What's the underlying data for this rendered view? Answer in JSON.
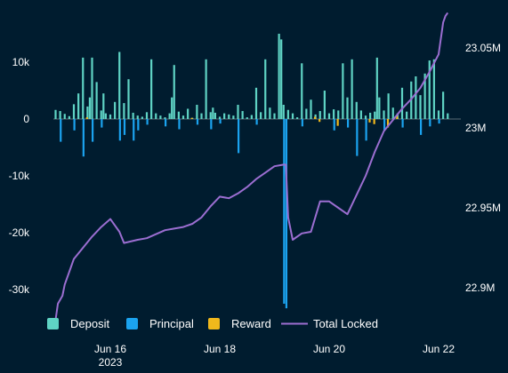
{
  "chart_data": {
    "type": "bar+line",
    "title": "",
    "left_axis": {
      "ticks": [
        10000,
        0,
        -10000,
        -20000,
        -30000
      ],
      "tick_labels": [
        "10k",
        "0",
        "-10k",
        "-20k",
        "-30k"
      ],
      "range": [
        -36000,
        16500
      ]
    },
    "right_axis": {
      "ticks": [
        23050000,
        23000000,
        22950000,
        22900000
      ],
      "tick_labels": [
        "23.05M",
        "23M",
        "22.95M",
        "22.9M"
      ],
      "range": [
        22870000,
        23075000
      ]
    },
    "x_axis": {
      "range_days": [
        "2023-06-14T20:00",
        "2023-06-22T10:00"
      ],
      "ticks": [
        {
          "date": "2023-06-16",
          "label": "Jun 16",
          "sublabel": "2023"
        },
        {
          "date": "2023-06-18",
          "label": "Jun 18",
          "sublabel": ""
        },
        {
          "date": "2023-06-20",
          "label": "Jun 20",
          "sublabel": ""
        },
        {
          "date": "2023-06-22",
          "label": "Jun 22",
          "sublabel": ""
        }
      ]
    },
    "colors": {
      "background": "#001c2f",
      "deposit": "#5fd3c4",
      "principal": "#1ba3ef",
      "reward": "#f0b81c",
      "total_locked": "#9b6ed1",
      "zero_line": "#5a6b76",
      "text": "#ffffff"
    },
    "legend": {
      "position": "bottom",
      "items": [
        {
          "name": "Deposit",
          "type": "bar",
          "color": "#5fd3c4"
        },
        {
          "name": "Principal",
          "type": "bar",
          "color": "#1ba3ef"
        },
        {
          "name": "Reward",
          "type": "bar",
          "color": "#f0b81c"
        },
        {
          "name": "Total Locked",
          "type": "line",
          "color": "#9b6ed1"
        }
      ]
    },
    "series": [
      {
        "name": "Deposit",
        "type": "bar",
        "axis": "left",
        "x": [
          "2023-06-15T00:00",
          "2023-06-15T02:00",
          "2023-06-15T04:00",
          "2023-06-15T06:00",
          "2023-06-15T08:00",
          "2023-06-15T10:00",
          "2023-06-15T12:00",
          "2023-06-15T14:00",
          "2023-06-15T15:00",
          "2023-06-15T16:00",
          "2023-06-15T18:00",
          "2023-06-15T20:00",
          "2023-06-15T21:00",
          "2023-06-15T22:00",
          "2023-06-16T00:00",
          "2023-06-16T02:00",
          "2023-06-16T04:00",
          "2023-06-16T06:00",
          "2023-06-16T08:00",
          "2023-06-16T10:00",
          "2023-06-16T12:00",
          "2023-06-16T14:00",
          "2023-06-16T16:00",
          "2023-06-16T18:00",
          "2023-06-16T20:00",
          "2023-06-16T22:00",
          "2023-06-17T00:00",
          "2023-06-17T02:00",
          "2023-06-17T03:00",
          "2023-06-17T04:00",
          "2023-06-17T06:00",
          "2023-06-17T08:00",
          "2023-06-17T10:00",
          "2023-06-17T12:00",
          "2023-06-17T14:00",
          "2023-06-17T16:00",
          "2023-06-17T18:00",
          "2023-06-17T20:00",
          "2023-06-17T21:00",
          "2023-06-17T22:00",
          "2023-06-18T00:00",
          "2023-06-18T02:00",
          "2023-06-18T04:00",
          "2023-06-18T06:00",
          "2023-06-18T08:00",
          "2023-06-18T10:00",
          "2023-06-18T12:00",
          "2023-06-18T14:00",
          "2023-06-18T16:00",
          "2023-06-18T18:00",
          "2023-06-18T20:00",
          "2023-06-18T22:00",
          "2023-06-19T00:00",
          "2023-06-19T02:00",
          "2023-06-19T03:00",
          "2023-06-19T04:00",
          "2023-06-19T06:00",
          "2023-06-19T08:00",
          "2023-06-19T10:00",
          "2023-06-19T12:00",
          "2023-06-19T14:00",
          "2023-06-19T16:00",
          "2023-06-19T18:00",
          "2023-06-19T20:00",
          "2023-06-19T22:00",
          "2023-06-20T00:00",
          "2023-06-20T02:00",
          "2023-06-20T04:00",
          "2023-06-20T06:00",
          "2023-06-20T08:00",
          "2023-06-20T10:00",
          "2023-06-20T12:00",
          "2023-06-20T14:00",
          "2023-06-20T16:00",
          "2023-06-20T18:00",
          "2023-06-20T20:00",
          "2023-06-20T21:00",
          "2023-06-20T22:00",
          "2023-06-21T00:00",
          "2023-06-21T02:00",
          "2023-06-21T04:00",
          "2023-06-21T06:00",
          "2023-06-21T08:00",
          "2023-06-21T10:00",
          "2023-06-21T12:00",
          "2023-06-21T14:00",
          "2023-06-21T16:00",
          "2023-06-21T18:00",
          "2023-06-21T20:00",
          "2023-06-21T22:00",
          "2023-06-22T00:00",
          "2023-06-22T02:00",
          "2023-06-22T04:00"
        ],
        "values": [
          1600,
          1400,
          900,
          500,
          2600,
          4500,
          10800,
          2200,
          3800,
          10800,
          6500,
          1500,
          4500,
          1000,
          800,
          3000,
          11800,
          2800,
          7000,
          1100,
          600,
          400,
          1200,
          10500,
          1000,
          600,
          300,
          1000,
          3800,
          9500,
          1300,
          600,
          1800,
          200,
          2500,
          1000,
          10500,
          1200,
          2000,
          1100,
          400,
          1000,
          800,
          600,
          2500,
          1400,
          300,
          700,
          5500,
          1200,
          10500,
          2000,
          1000,
          15000,
          14000,
          2500,
          1600,
          1000,
          300,
          9800,
          1800,
          3400,
          800,
          1400,
          5000,
          1000,
          1700,
          1500,
          9800,
          3800,
          10500,
          3000,
          1500,
          600,
          1100,
          1300,
          10800,
          3800,
          1500,
          4500,
          2000,
          1000,
          5500,
          1300,
          6600,
          7500,
          4200,
          8000,
          10300,
          10500,
          1500,
          4800,
          1000
        ]
      },
      {
        "name": "Principal",
        "type": "bar",
        "axis": "left",
        "x": [
          "2023-06-15T02:00",
          "2023-06-15T08:00",
          "2023-06-15T12:00",
          "2023-06-15T16:00",
          "2023-06-15T20:00",
          "2023-06-16T04:00",
          "2023-06-16T06:00",
          "2023-06-16T10:00",
          "2023-06-16T12:00",
          "2023-06-16T16:00",
          "2023-06-17T00:00",
          "2023-06-17T06:00",
          "2023-06-17T14:00",
          "2023-06-17T20:00",
          "2023-06-18T00:00",
          "2023-06-18T08:00",
          "2023-06-18T16:00",
          "2023-06-19T04:00",
          "2023-06-19T05:00",
          "2023-06-19T12:00",
          "2023-06-20T02:00",
          "2023-06-20T08:00",
          "2023-06-20T12:00",
          "2023-06-20T16:00",
          "2023-06-21T00:00",
          "2023-06-21T08:00",
          "2023-06-21T16:00",
          "2023-06-21T20:00",
          "2023-06-22T00:00"
        ],
        "values": [
          -4000,
          -2000,
          -6600,
          -4000,
          -1500,
          -3800,
          -2800,
          -3800,
          -2000,
          -1000,
          -1300,
          -1800,
          -1000,
          -1800,
          -800,
          -6000,
          -1000,
          -32500,
          -33300,
          -1300,
          -2000,
          -1500,
          -6500,
          -3800,
          -2000,
          -1500,
          -2800,
          -1300,
          -800
        ]
      },
      {
        "name": "Reward",
        "type": "bar",
        "axis": "left",
        "x": [
          "2023-06-15T14:00",
          "2023-06-17T12:00",
          "2023-06-19T18:00",
          "2023-06-19T20:00",
          "2023-06-20T04:00",
          "2023-06-20T18:00",
          "2023-06-20T20:00",
          "2023-06-21T02:00",
          "2023-06-21T06:00"
        ],
        "values": [
          300,
          200,
          400,
          -500,
          -1200,
          -600,
          -900,
          -1500,
          500
        ]
      },
      {
        "name": "Total Locked",
        "type": "line",
        "axis": "right",
        "x": [
          "2023-06-15T00:00",
          "2023-06-15T01:00",
          "2023-06-15T03:00",
          "2023-06-15T04:00",
          "2023-06-15T06:00",
          "2023-06-15T08:00",
          "2023-06-15T12:00",
          "2023-06-15T16:00",
          "2023-06-15T20:00",
          "2023-06-16T00:00",
          "2023-06-16T04:00",
          "2023-06-16T06:00",
          "2023-06-16T12:00",
          "2023-06-16T16:00",
          "2023-06-17T00:00",
          "2023-06-17T04:00",
          "2023-06-17T08:00",
          "2023-06-17T12:00",
          "2023-06-17T16:00",
          "2023-06-17T20:00",
          "2023-06-18T00:00",
          "2023-06-18T04:00",
          "2023-06-18T08:00",
          "2023-06-18T12:00",
          "2023-06-18T16:00",
          "2023-06-18T20:00",
          "2023-06-19T00:00",
          "2023-06-19T04:00",
          "2023-06-19T05:00",
          "2023-06-19T06:00",
          "2023-06-19T08:00",
          "2023-06-19T12:00",
          "2023-06-19T16:00",
          "2023-06-19T20:00",
          "2023-06-20T00:00",
          "2023-06-20T04:00",
          "2023-06-20T08:00",
          "2023-06-20T12:00",
          "2023-06-20T16:00",
          "2023-06-20T20:00",
          "2023-06-21T00:00",
          "2023-06-21T04:00",
          "2023-06-21T08:00",
          "2023-06-21T12:00",
          "2023-06-21T16:00",
          "2023-06-21T20:00",
          "2023-06-22T00:00",
          "2023-06-22T02:00",
          "2023-06-22T03:00",
          "2023-06-22T04:00"
        ],
        "values": [
          22880000,
          22890000,
          22895000,
          22902000,
          22910000,
          22918000,
          22925000,
          22932000,
          22938000,
          22943000,
          22935000,
          22928000,
          22930000,
          22931000,
          22936000,
          22937000,
          22938000,
          22940000,
          22944000,
          22951000,
          22957000,
          22956000,
          22959000,
          22963000,
          22968000,
          22972000,
          22976000,
          22977000,
          22977000,
          22944000,
          22930000,
          22934000,
          22935000,
          22954000,
          22954000,
          22950000,
          22946000,
          22958000,
          22970000,
          22985000,
          22998000,
          23005000,
          23012000,
          23018000,
          23025000,
          23035000,
          23046000,
          23066000,
          23070000,
          23072000
        ]
      }
    ]
  }
}
